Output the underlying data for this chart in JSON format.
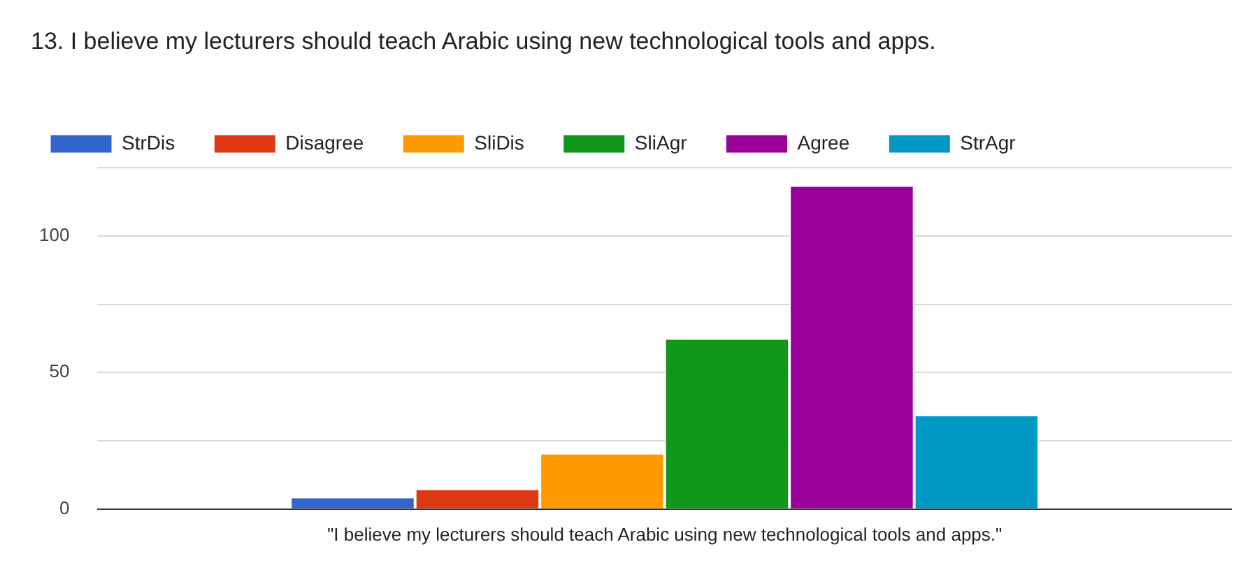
{
  "chart_data": {
    "type": "bar",
    "title": "13. I believe my lecturers should teach Arabic using new technological tools and apps.",
    "categories": [
      "\"I believe my lecturers should teach Arabic using new technological tools and apps.\""
    ],
    "series": [
      {
        "name": "StrDis",
        "color": "#3366cc",
        "values": [
          4
        ]
      },
      {
        "name": "Disagree",
        "color": "#dc3912",
        "values": [
          7
        ]
      },
      {
        "name": "SliDis",
        "color": "#ff9900",
        "values": [
          20
        ]
      },
      {
        "name": "SliAgr",
        "color": "#109618",
        "values": [
          62
        ]
      },
      {
        "name": "Agree",
        "color": "#990099",
        "values": [
          118
        ]
      },
      {
        "name": "StrAgr",
        "color": "#0099c6",
        "values": [
          34
        ]
      }
    ],
    "ylim": [
      0,
      125
    ],
    "yticks": [
      0,
      {
        "value": 25,
        "label": null
      },
      50,
      {
        "value": 75,
        "label": null
      },
      100,
      {
        "value": 125,
        "label": null
      }
    ],
    "grid": "y",
    "legend": "top left"
  }
}
